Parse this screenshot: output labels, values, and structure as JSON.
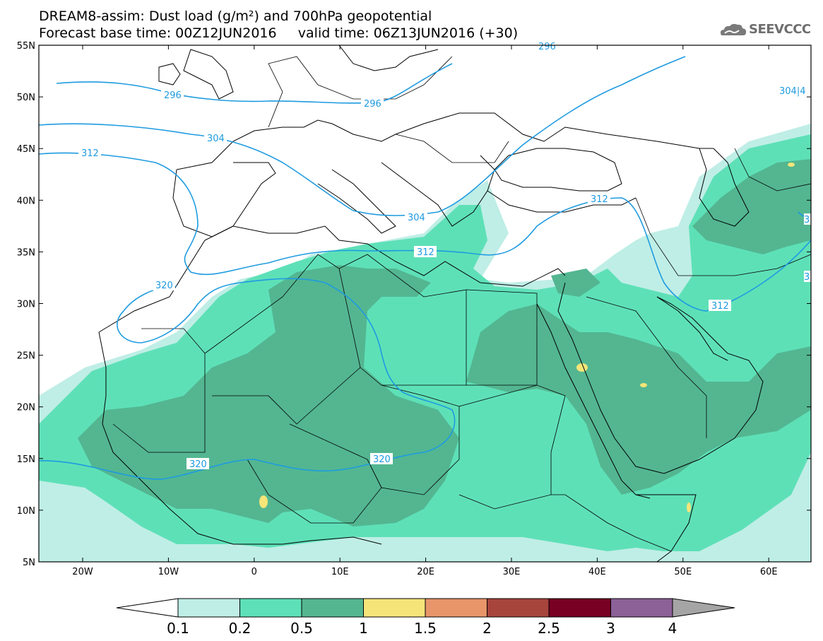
{
  "title": {
    "line1": "DREAM8-assim: Dust load (g/m²) and 700hPa geopotential",
    "line2_base": "Forecast base time: 00Z12JUN2016",
    "line2_valid": "valid time: 06Z13JUN2016 (+30)"
  },
  "logo": {
    "text": "SEEVCCC",
    "icon": "cloud-icon"
  },
  "map": {
    "lat_labels": [
      "55N",
      "50N",
      "45N",
      "40N",
      "35N",
      "30N",
      "25N",
      "20N",
      "15N",
      "10N",
      "5N"
    ],
    "lon_labels": [
      "20W",
      "10W",
      "0",
      "10E",
      "20E",
      "30E",
      "40E",
      "50E",
      "60E"
    ],
    "contour_labels": [
      "296",
      "296",
      "296",
      "304",
      "304",
      "304|4",
      "312",
      "312",
      "312",
      "312",
      "320",
      "320",
      "320",
      "3",
      "3"
    ]
  },
  "colors": {
    "level_01": "#bfeee6",
    "level_02": "#5ee0b7",
    "level_05": "#53b691",
    "level_1": "#f5e579",
    "level_15": "#e8956a",
    "level_2": "#a7453d",
    "level_25": "#780022",
    "level_3": "#8b6198",
    "level_4": "#a5a5a5",
    "contour": "#1e9be0"
  },
  "legend": {
    "labels": [
      "0.1",
      "0.2",
      "0.5",
      "1",
      "1.5",
      "2",
      "2.5",
      "3",
      "4"
    ]
  }
}
